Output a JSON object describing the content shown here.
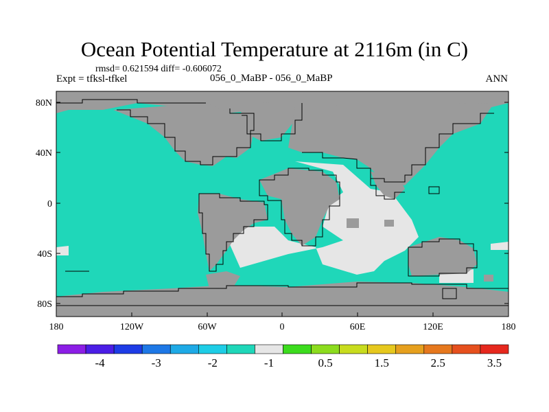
{
  "title": "Ocean Potential Temperature at 2116m (in C)",
  "stats_line": "rmsd= 0.621594 diff= -0.606072",
  "expt_label": "Expt = tfksl-tfkel",
  "case_label": "056_0_MaBP - 056_0_MaBP",
  "season_label": "ANN",
  "lon_ticks": [
    "180",
    "120W",
    "60W",
    "0",
    "60E",
    "120E",
    "180"
  ],
  "lat_ticks": [
    "80N",
    "40N",
    "0",
    "40S",
    "80S"
  ],
  "colors": {
    "land": "#9b9b9b",
    "ocean_main": "#1fd7b9",
    "ocean_near_zero": "#e6e6e6",
    "coastline": "#000000"
  },
  "colorbar": {
    "colors": [
      "#8c1ee6",
      "#4b1ee6",
      "#1e3ce6",
      "#1e78e6",
      "#1eaae6",
      "#1ecde6",
      "#1fd7b9",
      "#e6e6e6",
      "#3cdc1e",
      "#8cdc1e",
      "#c8dc1e",
      "#e6c81e",
      "#e6a01e",
      "#e6781e",
      "#e6501e",
      "#e6281e"
    ],
    "labels": [
      "-4",
      "-3",
      "-2",
      "-1",
      "0.5",
      "1.5",
      "2.5",
      "3.5"
    ]
  }
}
